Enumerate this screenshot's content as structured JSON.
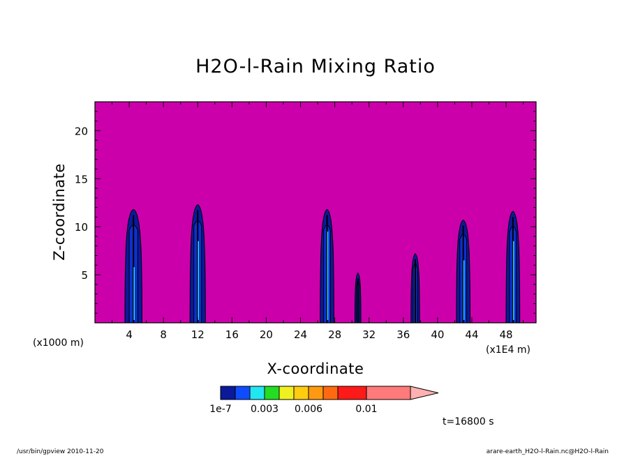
{
  "chart_data": {
    "type": "heatmap",
    "title": "H2O-l-Rain Mixing Ratio",
    "xlabel": "X-coordinate",
    "ylabel": "Z-coordinate",
    "x_unit_left": "(x1000 m)",
    "x_unit_right": "(x1E4 m)",
    "xlim": [
      0,
      51.5
    ],
    "ylim": [
      0,
      23
    ],
    "x_ticks": [
      4,
      8,
      12,
      16,
      20,
      24,
      28,
      32,
      36,
      40,
      44,
      48
    ],
    "y_ticks": [
      5,
      10,
      15,
      20
    ],
    "background_color": "#cc00aa",
    "cells": [
      {
        "x": 4.5,
        "top": 11.8,
        "half_width": 1.0,
        "core": 5.8
      },
      {
        "x": 12.0,
        "top": 12.3,
        "half_width": 0.9,
        "core": 8.5
      },
      {
        "x": 27.1,
        "top": 11.8,
        "half_width": 0.8,
        "core": 9.5
      },
      {
        "x": 30.7,
        "top": 5.2,
        "half_width": 0.35,
        "core": 0
      },
      {
        "x": 37.4,
        "top": 7.2,
        "half_width": 0.5,
        "core": 0
      },
      {
        "x": 43.0,
        "top": 10.7,
        "half_width": 0.8,
        "core": 6.5
      },
      {
        "x": 48.8,
        "top": 11.6,
        "half_width": 0.8,
        "core": 8.5
      }
    ],
    "colorbar": {
      "colors": [
        "#0a1a9a",
        "#0f4cff",
        "#22e6f0",
        "#22dd22",
        "#f0f020",
        "#ffcc10",
        "#ff9a10",
        "#ff6a10",
        "#ff1a1a",
        "#ff7a7a",
        "#ffb0b0"
      ],
      "labels": [
        "1e-7",
        "0.003",
        "0.006",
        "0.01"
      ]
    },
    "time_label": "t=16800 s"
  },
  "footer": {
    "left": "/usr/bin/gpview   2010-11-20",
    "right": "arare-earth_H2O-l-Rain.nc@H2O-l-Rain"
  }
}
